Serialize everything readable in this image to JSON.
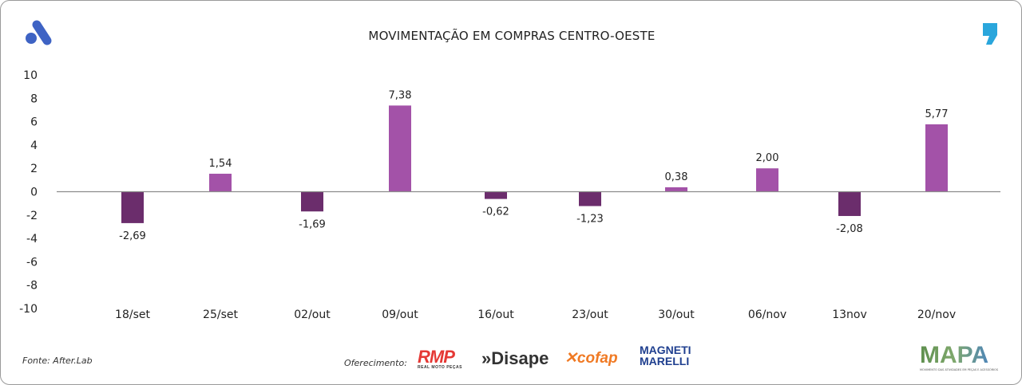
{
  "title": "MOVIMENTAÇÃO EM COMPRAS CENTRO-OESTE",
  "footer": {
    "source": "Fonte: After.Lab",
    "sponsor_label": "Oferecimento:",
    "sponsor_logos": [
      "RMP Real Moto Peças",
      "Disape",
      "cofap",
      "Magneti Marelli"
    ],
    "brand_logo": "MAPA",
    "brand_tagline": "MOVIMENTO DAS ATIVIDADES EM PEÇAS E ACESSÓRIOS"
  },
  "chart_data": {
    "type": "bar",
    "title": "MOVIMENTAÇÃO EM COMPRAS CENTRO-OESTE",
    "categories": [
      "18/set",
      "25/set",
      "02/out",
      "09/out",
      "16/out",
      "23/out",
      "30/out",
      "06/nov",
      "13nov",
      "20/nov"
    ],
    "values": [
      -2.69,
      1.54,
      -1.69,
      7.38,
      -0.62,
      -1.23,
      0.38,
      2.0,
      -2.08,
      5.77
    ],
    "data_labels": [
      "-2,69",
      "1,54",
      "-1,69",
      "7,38",
      "-0,62",
      "-1,23",
      "0,38",
      "2,00",
      "-2,08",
      "5,77"
    ],
    "ylim": [
      -10,
      10
    ],
    "yticks": [
      "10",
      "8",
      "6",
      "4",
      "2",
      "0",
      "-2",
      "-4",
      "-6",
      "-8",
      "-10"
    ],
    "grid": false,
    "colors": {
      "positive": "#a352a8",
      "negative": "#6b2d6c",
      "axis": "#8c8c8c"
    }
  }
}
